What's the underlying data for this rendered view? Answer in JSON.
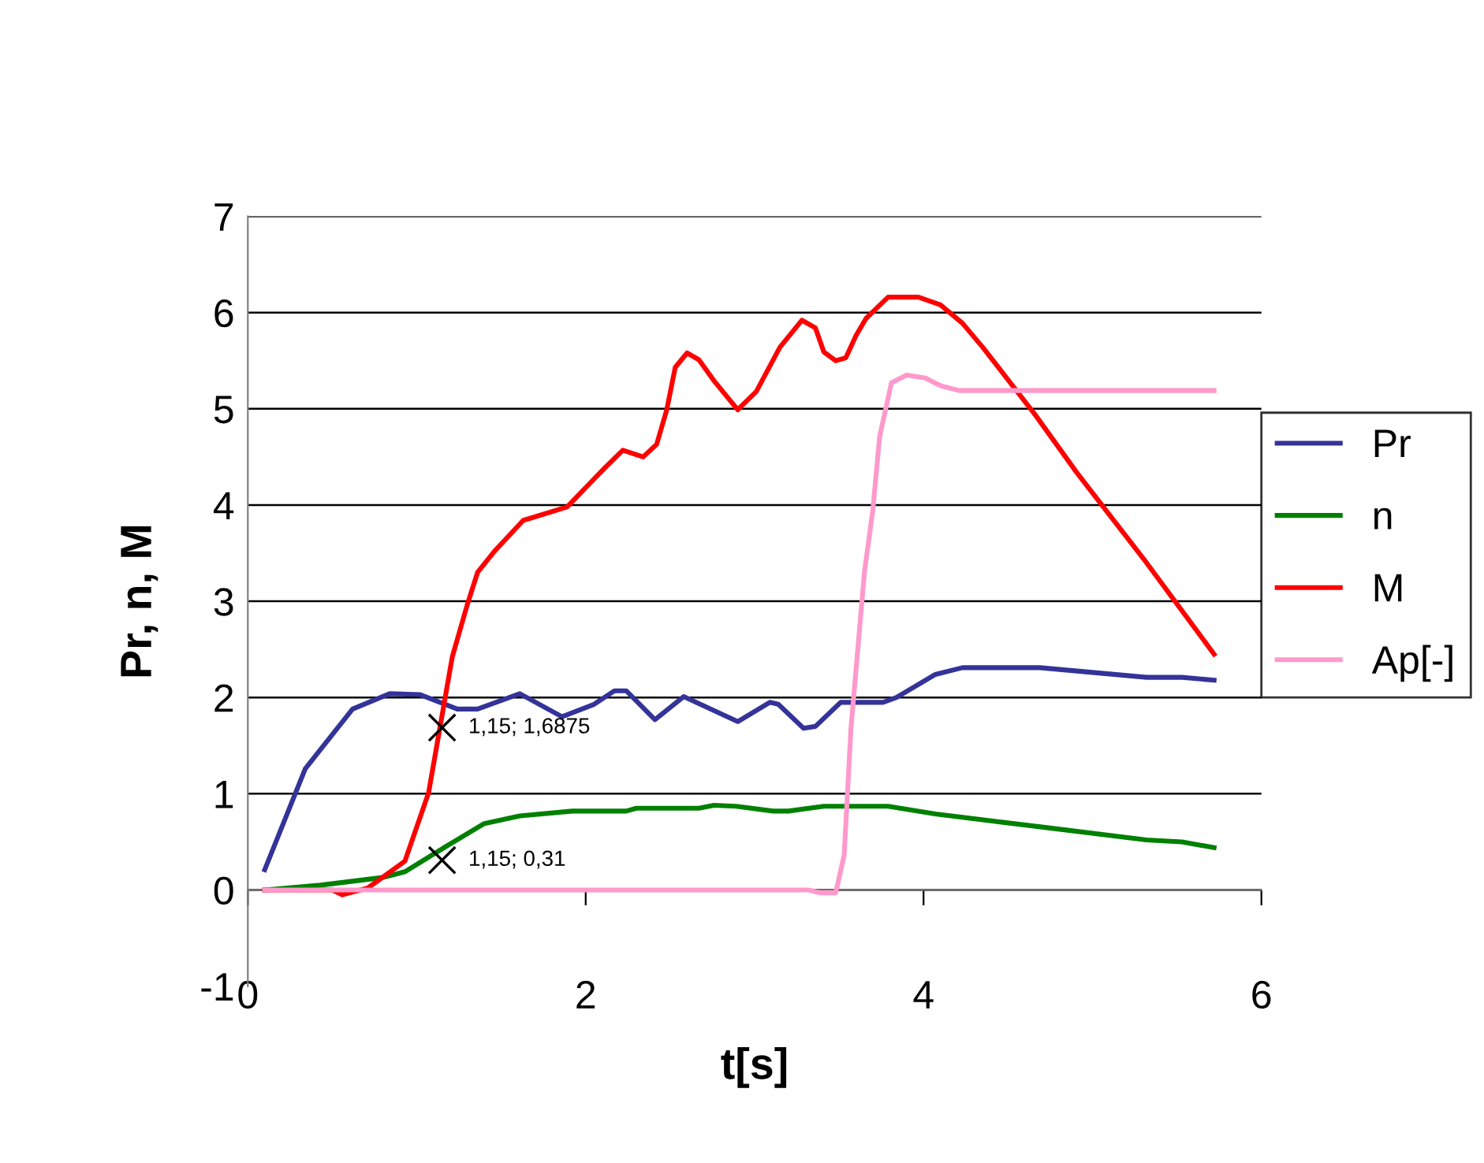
{
  "chart_data": {
    "type": "line",
    "xlabel": "t[s]",
    "ylabel": "Pr, n, M",
    "xlim": [
      0,
      6
    ],
    "xticks": [
      0,
      2,
      4,
      6
    ],
    "ylim": [
      -1,
      7
    ],
    "yticks": [
      -1,
      0,
      1,
      2,
      3,
      4,
      5,
      6,
      7
    ],
    "grid": "y",
    "legend": "right",
    "marker": "none",
    "line_style": "solid",
    "series": [
      {
        "name": "Pr",
        "color": "#333399",
        "x": [
          0.1,
          0.34,
          0.62,
          0.84,
          1.02,
          1.24,
          1.36,
          1.61,
          1.86,
          2.05,
          2.17,
          2.24,
          2.41,
          2.58,
          2.9,
          3.09,
          3.14,
          3.29,
          3.36,
          3.51,
          3.76,
          3.84,
          4.07,
          4.23,
          4.69,
          5.32,
          5.53,
          5.72
        ],
        "values": [
          0.21,
          1.26,
          1.88,
          2.04,
          2.03,
          1.88,
          1.88,
          2.04,
          1.8,
          1.93,
          2.07,
          2.07,
          1.77,
          2.01,
          1.75,
          1.95,
          1.93,
          1.68,
          1.7,
          1.95,
          1.95,
          2.0,
          2.24,
          2.31,
          2.31,
          2.21,
          2.21,
          2.18
        ]
      },
      {
        "name": "n",
        "color": "#008000",
        "x": [
          0.1,
          0.43,
          0.8,
          0.93,
          1.18,
          1.4,
          1.61,
          1.92,
          2.24,
          2.3,
          2.67,
          2.76,
          2.89,
          3.11,
          3.2,
          3.41,
          3.79,
          4.07,
          4.72,
          5.32,
          5.53,
          5.72
        ],
        "values": [
          0.0,
          0.05,
          0.13,
          0.19,
          0.46,
          0.69,
          0.77,
          0.82,
          0.82,
          0.85,
          0.85,
          0.88,
          0.87,
          0.82,
          0.82,
          0.87,
          0.87,
          0.79,
          0.65,
          0.52,
          0.5,
          0.44
        ]
      },
      {
        "name": "M",
        "color": "#ff0000",
        "x": [
          0.1,
          0.5,
          0.56,
          0.71,
          0.93,
          1.07,
          1.21,
          1.3,
          1.36,
          1.46,
          1.63,
          1.89,
          2.11,
          2.22,
          2.34,
          2.42,
          2.48,
          2.53,
          2.6,
          2.67,
          2.76,
          2.9,
          3.01,
          3.15,
          3.28,
          3.36,
          3.41,
          3.48,
          3.54,
          3.6,
          3.66,
          3.79,
          3.97,
          4.1,
          4.23,
          4.35,
          4.66,
          4.91,
          5.32,
          5.72
        ],
        "values": [
          0.0,
          0.0,
          -0.05,
          0.02,
          0.3,
          1.01,
          2.42,
          2.97,
          3.3,
          3.52,
          3.84,
          3.98,
          4.38,
          4.57,
          4.5,
          4.63,
          4.99,
          5.43,
          5.58,
          5.51,
          5.29,
          4.99,
          5.18,
          5.64,
          5.92,
          5.84,
          5.59,
          5.5,
          5.53,
          5.76,
          5.94,
          6.16,
          6.16,
          6.08,
          5.89,
          5.64,
          4.94,
          4.33,
          3.4,
          2.45
        ]
      },
      {
        "name": "Ap[-]",
        "color": "#ff99cc",
        "x": [
          0.1,
          3.32,
          3.39,
          3.48,
          3.53,
          3.57,
          3.65,
          3.7,
          3.74,
          3.81,
          3.9,
          4.01,
          4.1,
          4.21,
          5.72
        ],
        "values": [
          0.0,
          0.0,
          -0.03,
          -0.03,
          0.36,
          1.67,
          3.3,
          3.95,
          4.71,
          5.27,
          5.35,
          5.32,
          5.24,
          5.19,
          5.19
        ]
      }
    ],
    "annotations": [
      {
        "text": "1,15; 1,6875",
        "x": 1.15,
        "y": 1.6875
      },
      {
        "text": "1,15; 0,31",
        "x": 1.15,
        "y": 0.31
      }
    ]
  }
}
